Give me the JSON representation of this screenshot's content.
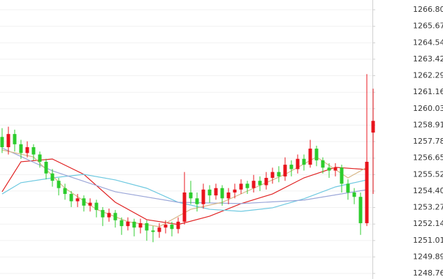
{
  "chart_data": {
    "type": "candlestick",
    "up_color": "#e8141c",
    "down_color": "#2ccc2c",
    "grid": true,
    "ylim": [
      1248.38,
      1267.47
    ],
    "yticks": [
      {
        "value": 1266.8,
        "label": "1266.80"
      },
      1265.67,
      1264.54,
      1263.42,
      1262.29,
      1261.16,
      1260.03,
      1258.91,
      1257.78,
      1256.65,
      1255.52,
      {
        "value": 1254.4,
        "label": "1254.40"
      },
      1253.27,
      1252.14,
      1251.01,
      1249.89,
      1248.76
    ],
    "open": [
      1258.1,
      1257.4,
      1258.3,
      1257.6,
      1257.0,
      1257.4,
      1256.9,
      1256.4,
      1255.6,
      1255.1,
      1254.6,
      1254.2,
      1253.7,
      1253.9,
      1253.4,
      1253.6,
      1253.1,
      1252.6,
      1252.9,
      1252.4,
      1252.0,
      1252.3,
      1251.9,
      1252.2,
      1251.7,
      1251.6,
      1251.9,
      1252.1,
      1251.8,
      1252.3,
      1254.3,
      1253.9,
      1253.5,
      1254.5,
      1254.1,
      1254.6,
      1253.9,
      1254.3,
      1254.5,
      1254.9,
      1254.6,
      1255.1,
      1254.8,
      1255.3,
      1255.7,
      1255.4,
      1256.2,
      1255.9,
      1256.6,
      1256.2,
      1257.3,
      1256.5,
      1256.0,
      1255.8,
      1256.0,
      1254.9,
      1254.3,
      1254.0,
      1252.2,
      1258.4
    ],
    "high": [
      1258.7,
      1258.8,
      1258.6,
      1257.9,
      1257.8,
      1257.6,
      1257.1,
      1256.6,
      1255.9,
      1255.3,
      1254.9,
      1254.4,
      1254.2,
      1254.1,
      1253.9,
      1253.8,
      1253.3,
      1253.2,
      1253.1,
      1252.6,
      1252.6,
      1252.5,
      1252.5,
      1252.4,
      1252.0,
      1252.2,
      1252.4,
      1252.3,
      1252.6,
      1255.7,
      1255.1,
      1254.3,
      1254.9,
      1254.8,
      1254.9,
      1254.8,
      1254.6,
      1254.9,
      1255.2,
      1255.1,
      1255.5,
      1255.4,
      1255.7,
      1256.0,
      1256.1,
      1256.7,
      1256.5,
      1256.9,
      1256.9,
      1257.9,
      1257.5,
      1256.7,
      1256.3,
      1256.3,
      1256.2,
      1255.2,
      1254.6,
      1254.3,
      1262.4,
      1261.4
    ],
    "low": [
      1257.0,
      1256.9,
      1257.1,
      1256.6,
      1256.7,
      1256.5,
      1256.0,
      1255.2,
      1254.7,
      1254.1,
      1253.8,
      1253.3,
      1253.3,
      1253.0,
      1253.0,
      1252.6,
      1252.0,
      1252.3,
      1251.9,
      1251.4,
      1251.7,
      1251.3,
      1251.5,
      1251.0,
      1250.9,
      1251.2,
      1251.5,
      1251.3,
      1251.5,
      1252.1,
      1253.5,
      1253.0,
      1253.2,
      1253.6,
      1253.8,
      1253.4,
      1253.5,
      1253.9,
      1254.2,
      1254.2,
      1254.3,
      1254.4,
      1254.5,
      1254.9,
      1255.0,
      1255.1,
      1255.4,
      1255.6,
      1255.8,
      1256.0,
      1256.1,
      1255.6,
      1255.3,
      1255.4,
      1254.3,
      1253.8,
      1253.5,
      1251.4,
      1252.0,
      1254.2
    ],
    "close": [
      1257.4,
      1258.3,
      1257.6,
      1257.0,
      1257.4,
      1256.9,
      1256.4,
      1255.6,
      1255.1,
      1254.6,
      1254.2,
      1253.7,
      1253.9,
      1253.4,
      1253.6,
      1253.1,
      1252.6,
      1252.9,
      1252.4,
      1252.0,
      1252.3,
      1251.9,
      1252.2,
      1251.7,
      1251.6,
      1251.9,
      1252.1,
      1251.8,
      1252.3,
      1254.3,
      1253.9,
      1253.5,
      1254.5,
      1254.1,
      1254.6,
      1253.9,
      1254.3,
      1254.5,
      1254.9,
      1254.6,
      1255.1,
      1254.8,
      1255.3,
      1255.7,
      1255.4,
      1256.2,
      1255.9,
      1256.6,
      1256.2,
      1257.3,
      1256.5,
      1256.0,
      1255.8,
      1256.0,
      1254.9,
      1254.3,
      1254.0,
      1252.2,
      1256.4,
      1259.2
    ],
    "lines": [
      {
        "color": "#e02020",
        "x": [
          0,
          3,
          8,
          13,
          18,
          23,
          28,
          33,
          38,
          43,
          48,
          53,
          58
        ],
        "values": [
          1254.35,
          1256.4,
          1256.59,
          1255.54,
          1253.63,
          1252.44,
          1252.11,
          1252.68,
          1253.54,
          1254.2,
          1255.3,
          1256.02,
          1255.87
        ]
      },
      {
        "color": "#6cc8e0",
        "x": [
          0,
          3,
          8,
          13,
          18,
          23,
          28,
          33,
          38,
          43,
          48,
          53,
          58
        ],
        "values": [
          1254.2,
          1254.97,
          1255.3,
          1255.54,
          1255.16,
          1254.59,
          1253.63,
          1253.15,
          1253.01,
          1253.25,
          1253.87,
          1254.68,
          1255.16
        ]
      },
      {
        "color": "#9aa6d8",
        "x": [
          0,
          8,
          18,
          28,
          38,
          48,
          58
        ],
        "values": [
          1257.35,
          1255.78,
          1254.35,
          1253.63,
          1253.54,
          1253.78,
          1254.49
        ]
      },
      {
        "color": "#d8b888",
        "x": [
          0,
          5,
          10,
          15,
          20,
          25,
          30,
          35,
          40,
          45,
          50,
          55,
          58
        ],
        "values": [
          1257.21,
          1256.73,
          1254.59,
          1253.15,
          1252.3,
          1251.96,
          1253.15,
          1253.63,
          1254.59,
          1255.54,
          1256.73,
          1255.3,
          1256.02
        ]
      }
    ]
  }
}
